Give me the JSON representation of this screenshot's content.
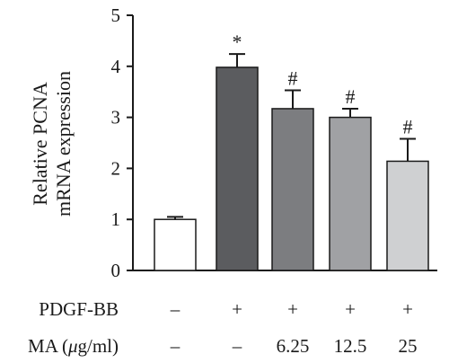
{
  "chart_data": {
    "type": "bar",
    "ylabel_lines": [
      "Relative PCNA",
      "mRNA expression"
    ],
    "ylim": [
      0,
      5
    ],
    "yticks": [
      "0",
      "1",
      "2",
      "3",
      "4",
      "5"
    ],
    "values": [
      1.0,
      3.98,
      3.17,
      3.0,
      2.14
    ],
    "errors": [
      0.05,
      0.26,
      0.36,
      0.17,
      0.44
    ],
    "significance": [
      "",
      "*",
      "#",
      "#",
      "#"
    ],
    "bar_colors": [
      "#ffffff",
      "#5b5c5f",
      "#7c7d80",
      "#a0a1a4",
      "#cfd0d2"
    ],
    "conditions": [
      {
        "label": "PDGF-BB",
        "values": [
          "–",
          "+",
          "+",
          "+",
          "+"
        ]
      },
      {
        "label_prefix": "MA (",
        "label_mu": "μ",
        "label_suffix": "g/ml)",
        "values": [
          "–",
          "–",
          "6.25",
          "12.5",
          "25"
        ]
      }
    ],
    "grid": false
  }
}
